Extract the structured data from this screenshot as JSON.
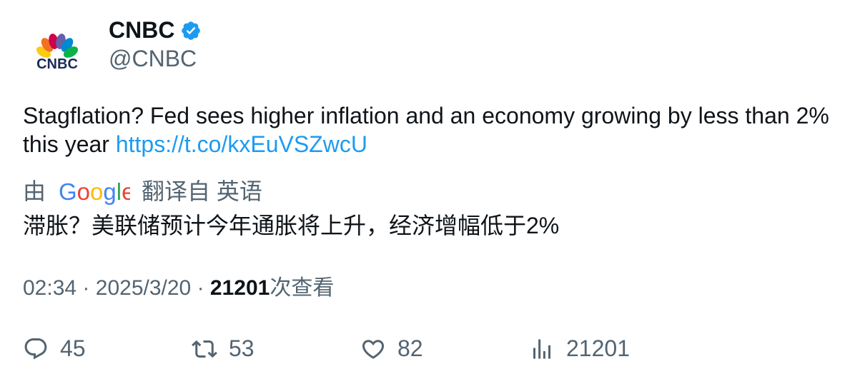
{
  "author": {
    "display_name": "CNBC",
    "handle": "@CNBC",
    "avatar_icon": "cnbc-peacock-logo",
    "logo_text": "CNBC",
    "verified": true
  },
  "tweet": {
    "text": "Stagflation? Fed sees higher inflation and an economy growing by less than 2% this year",
    "link": "https://t.co/kxEuVSZwcU"
  },
  "translation": {
    "prefix": "由",
    "provider": "Google",
    "suffix": "翻译自 英语",
    "text": "滞胀？美联储预计今年通胀将上升，经济增幅低于2%"
  },
  "meta": {
    "time": "02:34",
    "separator": "·",
    "date": "2025/3/20",
    "views": "21201",
    "views_label": "次查看"
  },
  "actions": {
    "replies": "45",
    "retweets": "53",
    "likes": "82",
    "views": "21201"
  },
  "colors": {
    "link": "#1d9bf0",
    "muted": "#536471",
    "text": "#0f1419",
    "verified": "#1d9bf0"
  }
}
